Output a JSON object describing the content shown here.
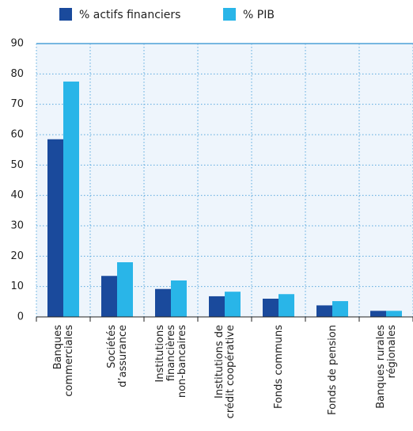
{
  "chart_data": {
    "type": "bar",
    "categories": [
      "Banques\ncommerciales",
      "Sociétés\nd’assurance",
      "Institutions\nfinancières\nnon-bancaires",
      "Institutions de\ncrédit coopérative",
      "Fonds communs",
      "Fonds de pension",
      "Banques rurales\nrégionales"
    ],
    "series": [
      {
        "name": "% actifs financiers",
        "color": "#1a4a9c",
        "values": [
          58.5,
          13.5,
          9.2,
          6.8,
          6,
          3.8,
          2
        ]
      },
      {
        "name": "% PIB",
        "color": "#29b5e8",
        "values": [
          77.5,
          18,
          12,
          8.3,
          7.5,
          5.2,
          2
        ]
      }
    ],
    "ylim": [
      0,
      90
    ],
    "yticks": [
      0,
      10,
      20,
      30,
      40,
      50,
      60,
      70,
      80,
      90
    ],
    "grid": true
  }
}
